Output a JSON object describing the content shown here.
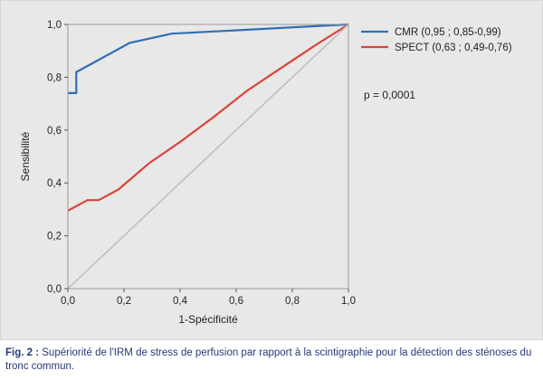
{
  "chart_data": {
    "type": "line",
    "xlabel": "1-Spécificité",
    "ylabel": "Sensibilité",
    "xlim": [
      0,
      1
    ],
    "ylim": [
      0,
      1
    ],
    "x_ticks": [
      "0,0",
      "0,2",
      "0,4",
      "0,6",
      "0,8",
      "1,0"
    ],
    "y_ticks": [
      "0,0",
      "0,2",
      "0,4",
      "0,6",
      "0,8",
      "1,0"
    ],
    "grid": false,
    "legend_position": "top-right",
    "annotation": "p = 0,0001",
    "series": [
      {
        "name": "CMR (0,95 ; 0,85-0,99)",
        "color": "#2f6fb2",
        "x": [
          0,
          0.03,
          0.03,
          0.03,
          0.1,
          0.22,
          0.37,
          1.0
        ],
        "y": [
          0.74,
          0.74,
          0.77,
          0.82,
          0.86,
          0.93,
          0.965,
          1.0
        ]
      },
      {
        "name": "SPECT (0,63 ; 0,49-0,76)",
        "color": "#d9443a",
        "x": [
          0,
          0.07,
          0.11,
          0.18,
          0.29,
          0.4,
          0.52,
          0.64,
          0.76,
          0.88,
          1.0
        ],
        "y": [
          0.295,
          0.335,
          0.335,
          0.375,
          0.475,
          0.555,
          0.65,
          0.75,
          0.835,
          0.92,
          1.0
        ]
      },
      {
        "name": "",
        "color": "#bdbdbd",
        "x": [
          0,
          1
        ],
        "y": [
          0,
          1
        ]
      }
    ]
  },
  "caption": {
    "label": "Fig. 2 :",
    "text": "Supériorité de l'IRM de stress de perfusion par rapport à la scintigraphie pour la détection des sténoses du tronc commun."
  }
}
